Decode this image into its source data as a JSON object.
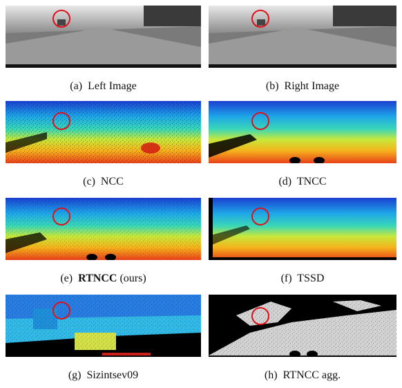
{
  "figure": {
    "panels": [
      {
        "id": "a",
        "label": "(a)",
        "name": "Left Image",
        "suffix": ""
      },
      {
        "id": "b",
        "label": "(b)",
        "name": "Right Image",
        "suffix": ""
      },
      {
        "id": "c",
        "label": "(c)",
        "name": "NCC",
        "suffix": ""
      },
      {
        "id": "d",
        "label": "(d)",
        "name": "TNCC",
        "suffix": ""
      },
      {
        "id": "e",
        "label": "(e)",
        "name": "RTNCC",
        "suffix": " (ours)"
      },
      {
        "id": "f",
        "label": "(f)",
        "name": "TSSD",
        "suffix": ""
      },
      {
        "id": "g",
        "label": "(g)",
        "name": "Sizintsev09",
        "suffix": ""
      },
      {
        "id": "h",
        "label": "(h)",
        "name": "RTNCC agg.",
        "suffix": ""
      }
    ]
  }
}
